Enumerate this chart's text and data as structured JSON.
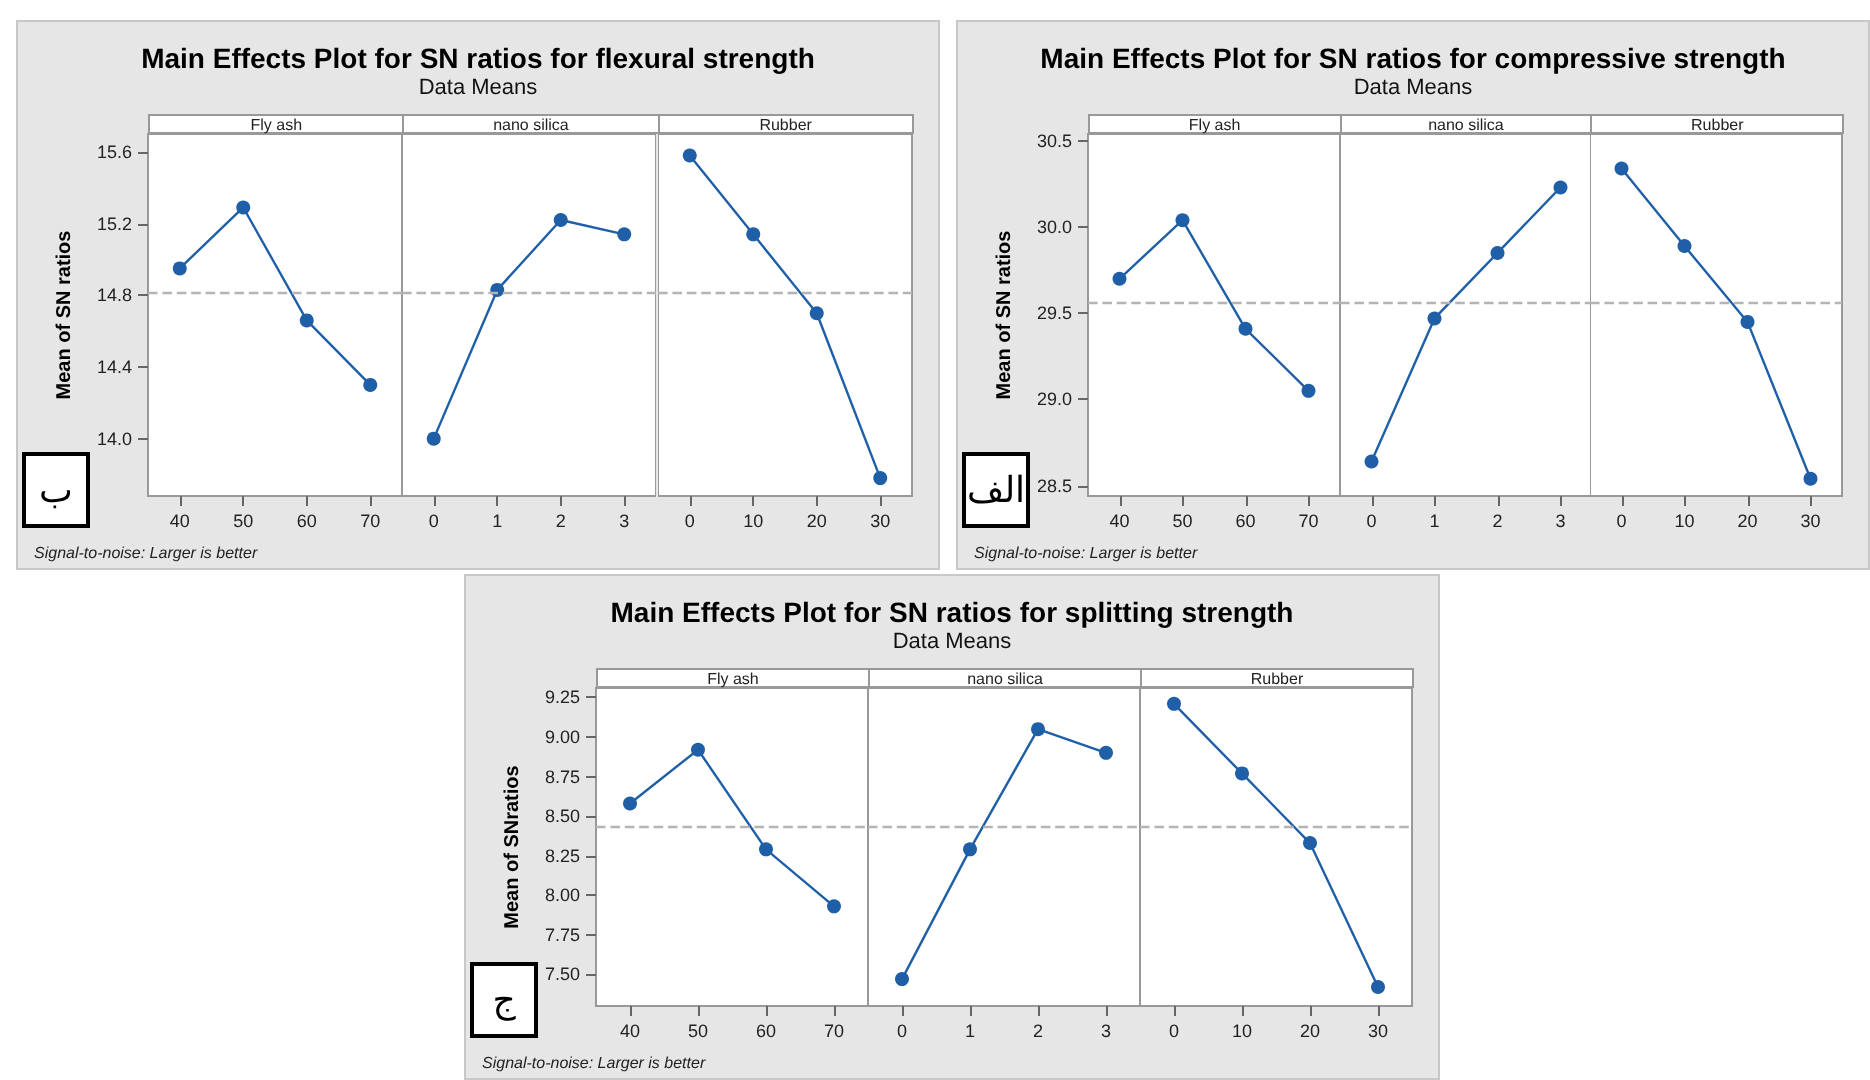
{
  "chart_data": [
    {
      "type": "other",
      "title": "Main Effects Plot for SN ratios for flexural strength",
      "subtitle": "Data Means",
      "annotations": [
        "Signal-to-noise: Larger is better",
        "ب"
      ]
    },
    {
      "type": "line",
      "title": "Fly ash",
      "ylabel": "Mean of SN ratios",
      "categories": [
        "40",
        "50",
        "60",
        "70"
      ],
      "values": [
        14.95,
        15.29,
        14.66,
        14.3
      ],
      "color": "#1f5fa8",
      "marker": "circle",
      "ylim": [
        13.68,
        15.7
      ],
      "yticks": [
        {
          "value": 14,
          "label": "14.0"
        },
        14.4,
        14.8,
        15.2,
        15.6
      ],
      "ref_lines": [
        {
          "axis": "y",
          "value": 14.81,
          "color": "#b4b4b4",
          "line_style": "dashed"
        }
      ]
    },
    {
      "type": "line",
      "title": "nano silica",
      "categories": [
        "0",
        "1",
        "2",
        "3"
      ],
      "values": [
        14.0,
        14.83,
        15.22,
        15.14
      ],
      "color": "#1f5fa8",
      "marker": "circle",
      "ylim": [
        13.68,
        15.7
      ],
      "tick_labels": "x",
      "ref_lines": [
        {
          "axis": "y",
          "value": 14.81,
          "color": "#b4b4b4",
          "line_style": "dashed"
        }
      ]
    },
    {
      "type": "line",
      "title": "Rubber",
      "categories": [
        "0",
        "10",
        "20",
        "30"
      ],
      "values": [
        15.58,
        15.14,
        14.7,
        13.78
      ],
      "color": "#1f5fa8",
      "marker": "circle",
      "ylim": [
        13.68,
        15.7
      ],
      "tick_labels": "x",
      "ref_lines": [
        {
          "axis": "y",
          "value": 14.81,
          "color": "#b4b4b4",
          "line_style": "dashed"
        }
      ]
    },
    {
      "type": "other",
      "title": "Main Effects Plot for SN ratios for compressive strength",
      "subtitle": "Data Means",
      "annotations": [
        "Signal-to-noise: Larger is better",
        "الف"
      ]
    },
    {
      "type": "line",
      "title": "Fly ash",
      "ylabel": "Mean of SN ratios",
      "categories": [
        "40",
        "50",
        "60",
        "70"
      ],
      "values": [
        29.7,
        30.04,
        29.41,
        29.05
      ],
      "color": "#1f5fa8",
      "marker": "circle",
      "ylim": [
        28.44,
        30.54
      ],
      "yticks": [
        28.5,
        {
          "value": 29,
          "label": "29.0"
        },
        29.5,
        {
          "value": 30,
          "label": "30.0"
        },
        30.5
      ],
      "ref_lines": [
        {
          "axis": "y",
          "value": 29.56,
          "color": "#b4b4b4",
          "line_style": "dashed"
        }
      ]
    },
    {
      "type": "line",
      "title": "nano silica",
      "categories": [
        "0",
        "1",
        "2",
        "3"
      ],
      "values": [
        28.64,
        29.47,
        29.85,
        30.23
      ],
      "color": "#1f5fa8",
      "marker": "circle",
      "ylim": [
        28.44,
        30.54
      ],
      "tick_labels": "x",
      "ref_lines": [
        {
          "axis": "y",
          "value": 29.56,
          "color": "#b4b4b4",
          "line_style": "dashed"
        }
      ]
    },
    {
      "type": "line",
      "title": "Rubber",
      "categories": [
        "0",
        "10",
        "20",
        "30"
      ],
      "values": [
        30.34,
        29.89,
        29.45,
        28.54
      ],
      "color": "#1f5fa8",
      "marker": "circle",
      "ylim": [
        28.44,
        30.54
      ],
      "tick_labels": "x",
      "ref_lines": [
        {
          "axis": "y",
          "value": 29.56,
          "color": "#b4b4b4",
          "line_style": "dashed"
        }
      ]
    },
    {
      "type": "other",
      "title": "Main Effects Plot for SN ratios for splitting strength",
      "subtitle": "Data Means",
      "annotations": [
        "Signal-to-noise: Larger is better",
        "ج"
      ]
    },
    {
      "type": "line",
      "title": "Fly ash",
      "ylabel": "Mean of SNratios",
      "categories": [
        "40",
        "50",
        "60",
        "70"
      ],
      "values": [
        8.58,
        8.92,
        8.29,
        7.93
      ],
      "color": "#1f5fa8",
      "marker": "circle",
      "ylim": [
        7.3,
        9.31
      ],
      "yticks": [
        {
          "value": 7.5,
          "label": "7.50"
        },
        7.75,
        {
          "value": 8,
          "label": "8.00"
        },
        8.25,
        {
          "value": 8.5,
          "label": "8.50"
        },
        8.75,
        {
          "value": 9,
          "label": "9.00"
        },
        9.25
      ],
      "ref_lines": [
        {
          "axis": "y",
          "value": 8.43,
          "color": "#b4b4b4",
          "line_style": "dashed"
        }
      ]
    },
    {
      "type": "line",
      "title": "nano silica",
      "categories": [
        "0",
        "1",
        "2",
        "3"
      ],
      "values": [
        7.47,
        8.29,
        9.05,
        8.9
      ],
      "color": "#1f5fa8",
      "marker": "circle",
      "ylim": [
        7.3,
        9.31
      ],
      "tick_labels": "x",
      "ref_lines": [
        {
          "axis": "y",
          "value": 8.43,
          "color": "#b4b4b4",
          "line_style": "dashed"
        }
      ]
    },
    {
      "type": "line",
      "title": "Rubber",
      "categories": [
        "0",
        "10",
        "20",
        "30"
      ],
      "values": [
        9.21,
        8.77,
        8.33,
        7.42
      ],
      "color": "#1f5fa8",
      "marker": "circle",
      "ylim": [
        7.3,
        9.31
      ],
      "tick_labels": "x",
      "ref_lines": [
        {
          "axis": "y",
          "value": 8.43,
          "color": "#b4b4b4",
          "line_style": "dashed"
        }
      ]
    }
  ]
}
